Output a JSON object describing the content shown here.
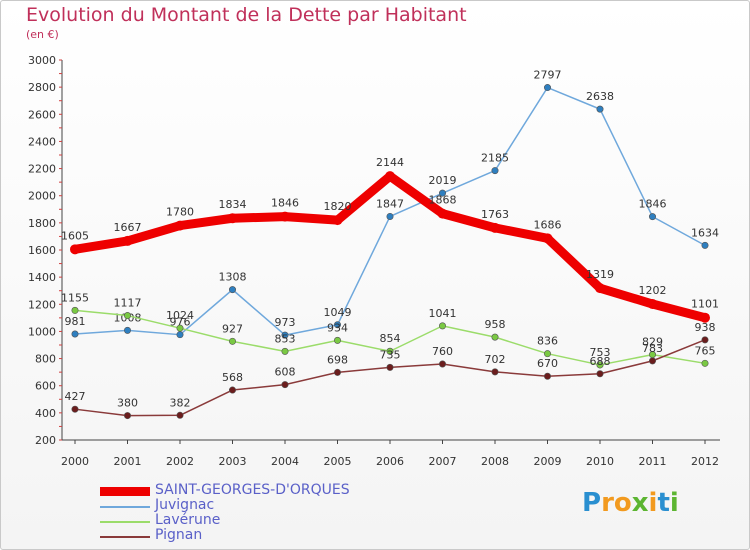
{
  "title": "Evolution du Montant de la Dette par Habitant",
  "subtitle": "(en €)",
  "logo": {
    "letters": [
      "P",
      "r",
      "o",
      "x",
      "i",
      "t",
      "i"
    ],
    "colors": [
      "#2a8fd0",
      "#f29a1f",
      "#f29a1f",
      "#5cb531",
      "#f29a1f",
      "#2a8fd0",
      "#5cb531"
    ]
  },
  "chart_data": {
    "type": "line",
    "title": "Evolution du Montant de la Dette par Habitant",
    "ylabel": "(en €)",
    "x": [
      "2000",
      "2001",
      "2002",
      "2003",
      "2004",
      "2005",
      "2006",
      "2007",
      "2008",
      "2009",
      "2010",
      "2011",
      "2012"
    ],
    "ylim": [
      200,
      3000
    ],
    "yticks": [
      200,
      400,
      600,
      800,
      1000,
      1200,
      1400,
      1600,
      1800,
      2000,
      2200,
      2400,
      2600,
      2800,
      3000
    ],
    "grid": false,
    "legend_position": "bottom-left",
    "series": [
      {
        "name": "SAINT-GEORGES-D'ORQUES",
        "color": "#ee0000",
        "marker": "#ee0000",
        "values": [
          1605,
          1667,
          1780,
          1834,
          1846,
          1820,
          2144,
          1868,
          1763,
          1686,
          1319,
          1202,
          1101
        ]
      },
      {
        "name": "Juvignac",
        "color": "#6fa8dc",
        "marker": "#2e7fc0",
        "values": [
          981,
          1008,
          976,
          1308,
          973,
          1049,
          1847,
          2019,
          2185,
          2797,
          2638,
          1846,
          1634
        ]
      },
      {
        "name": "Lavérune",
        "color": "#9bdc6a",
        "marker": "#7ac943",
        "values": [
          1155,
          1117,
          1024,
          927,
          853,
          934,
          854,
          1041,
          958,
          836,
          753,
          829,
          765
        ]
      },
      {
        "name": "Pignan",
        "color": "#8a3a3a",
        "marker": "#6b1d1d",
        "values": [
          427,
          380,
          382,
          568,
          608,
          698,
          735,
          760,
          702,
          670,
          688,
          783,
          938
        ]
      }
    ]
  }
}
